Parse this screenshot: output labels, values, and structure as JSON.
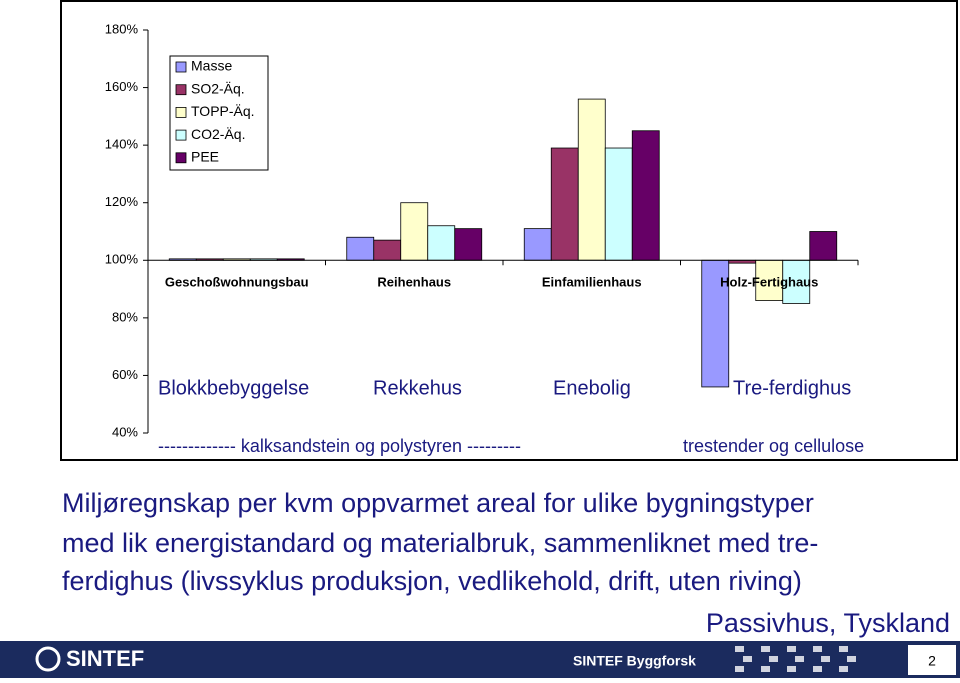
{
  "chart_data": {
    "type": "bar",
    "categories": [
      "Geschoßwohnungsbau",
      "Reihenhaus",
      "Einfamilienhaus",
      "Holz-Fertighaus"
    ],
    "series": [
      {
        "name": "Masse",
        "color": "#9999ff",
        "values": [
          100.5,
          108,
          111,
          56
        ]
      },
      {
        "name": "SO2-Äq.",
        "color": "#993366",
        "values": [
          100.5,
          107,
          139,
          99
        ]
      },
      {
        "name": "TOPP-Äq.",
        "color": "#ffffcc",
        "values": [
          100.5,
          120,
          156,
          86
        ]
      },
      {
        "name": "CO2-Äq.",
        "color": "#ccffff",
        "values": [
          100.5,
          112,
          139,
          85
        ]
      },
      {
        "name": "PEE",
        "color": "#660066",
        "values": [
          100.5,
          111,
          145,
          110
        ]
      }
    ],
    "ylim": [
      40,
      180
    ],
    "yticks": [
      {
        "value": 40,
        "label": "40%"
      },
      {
        "value": 60,
        "label": "60%"
      },
      {
        "value": 80,
        "label": "80%"
      },
      {
        "value": 100,
        "label": "100%"
      },
      {
        "value": 120,
        "label": "120%"
      },
      {
        "value": 140,
        "label": "140%"
      },
      {
        "value": 160,
        "label": "160%"
      },
      {
        "value": 180,
        "label": "180%"
      }
    ],
    "base": 100,
    "annotations": [
      "Blokkbebyggelse",
      "Rekkehus",
      "Enebolig",
      "Tre-ferdighus",
      "------------- kalksandstein og polystyren ---------",
      "trestender og cellulose"
    ]
  },
  "slide": {
    "text_lines": [
      "Miljøregnskap per kvm oppvarmet areal for ulike bygningstyper",
      "med lik energistandard og materialbruk, sammenliknet med tre-",
      "ferdighus   (livssyklus produksjon, vedlikehold, drift, uten riving)"
    ],
    "subtitle": "Passivhus, Tyskland"
  },
  "footer": {
    "logo": "SINTEF",
    "unit": "SINTEF Byggforsk",
    "page": "2"
  }
}
